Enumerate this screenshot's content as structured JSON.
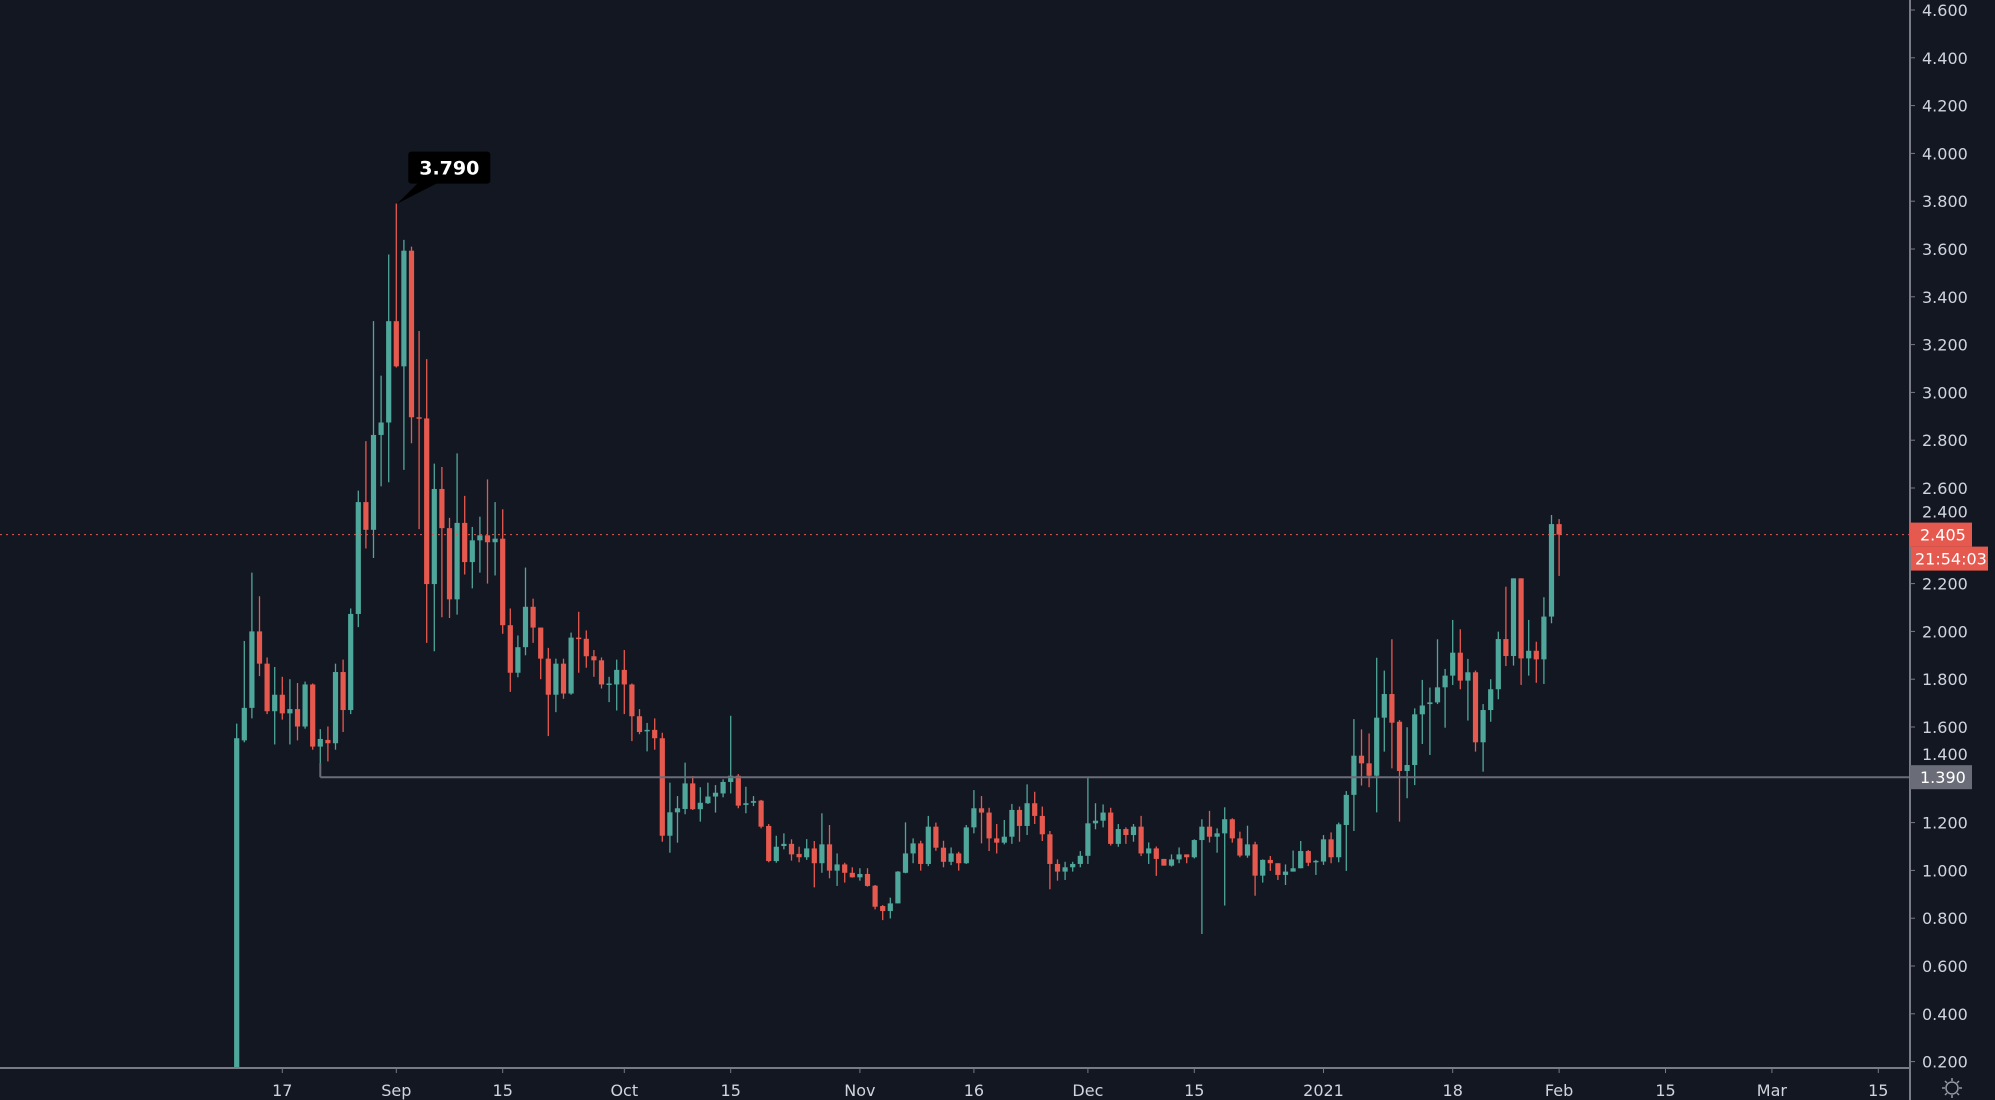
{
  "chart_data": {
    "type": "candlestick",
    "start_date": "2020-08-11",
    "interval": "1D",
    "ylim": [
      0.2,
      4.6
    ],
    "y_ticks": [
      "0.200",
      "0.400",
      "0.600",
      "0.800",
      "1.000",
      "1.200",
      "1.400",
      "1.600",
      "1.800",
      "2.000",
      "2.200",
      "2.400",
      "2.600",
      "2.800",
      "3.000",
      "3.200",
      "3.400",
      "3.600",
      "3.800",
      "4.000",
      "4.200",
      "4.400",
      "4.600"
    ],
    "x_ticks": [
      {
        "label": "17",
        "date": "2020-08-17"
      },
      {
        "label": "Sep",
        "date": "2020-09-01"
      },
      {
        "label": "15",
        "date": "2020-09-15"
      },
      {
        "label": "Oct",
        "date": "2020-10-01"
      },
      {
        "label": "15",
        "date": "2020-10-15"
      },
      {
        "label": "Nov",
        "date": "2020-11-01"
      },
      {
        "label": "16",
        "date": "2020-11-16"
      },
      {
        "label": "Dec",
        "date": "2020-12-01"
      },
      {
        "label": "15",
        "date": "2020-12-15"
      },
      {
        "label": "2021",
        "date": "2021-01-01"
      },
      {
        "label": "18",
        "date": "2021-01-18"
      },
      {
        "label": "Feb",
        "date": "2021-02-01"
      },
      {
        "label": "15",
        "date": "2021-02-15"
      },
      {
        "label": "Mar",
        "date": "2021-03-01"
      },
      {
        "label": "15",
        "date": "2021-03-15"
      }
    ],
    "colors": {
      "background": "#131722",
      "up": "#4fa69b",
      "down": "#e5594f",
      "axis": "#787b86",
      "text": "#d1d4dc",
      "level_line": "#6a6d78"
    },
    "high_annotation": {
      "label": "3.790",
      "value": 3.79,
      "date": "2020-09-01"
    },
    "last_price": {
      "label": "2.405",
      "value": 2.405,
      "countdown": "21:54:03"
    },
    "horizontal_level": {
      "label": "1.390",
      "value": 1.39,
      "start_date": "2020-08-22"
    },
    "settings_icon": "gear-icon",
    "ohlc": [
      [
        0.15,
        1.614,
        0.15,
        1.553
      ],
      [
        1.544,
        1.96,
        1.536,
        1.68
      ],
      [
        1.68,
        2.246,
        1.636,
        2.0
      ],
      [
        2.0,
        2.147,
        1.813,
        1.865
      ],
      [
        1.865,
        1.891,
        1.654,
        1.666
      ],
      [
        1.666,
        1.851,
        1.527,
        1.735
      ],
      [
        1.735,
        1.81,
        1.631,
        1.657
      ],
      [
        1.657,
        1.8,
        1.527,
        1.675
      ],
      [
        1.675,
        1.784,
        1.544,
        1.602
      ],
      [
        1.602,
        1.79,
        1.593,
        1.778
      ],
      [
        1.778,
        1.782,
        1.505,
        1.518
      ],
      [
        1.518,
        1.591,
        1.392,
        1.55
      ],
      [
        1.546,
        1.602,
        1.456,
        1.532
      ],
      [
        1.532,
        1.865,
        1.505,
        1.83
      ],
      [
        1.83,
        1.882,
        1.579,
        1.671
      ],
      [
        1.671,
        2.096,
        1.654,
        2.073
      ],
      [
        2.073,
        2.589,
        2.018,
        2.541
      ],
      [
        2.541,
        2.796,
        2.347,
        2.425
      ],
      [
        2.425,
        3.298,
        2.307,
        2.822
      ],
      [
        2.822,
        3.07,
        2.607,
        2.874
      ],
      [
        2.874,
        3.577,
        2.624,
        3.298
      ],
      [
        3.298,
        3.79,
        3.104,
        3.109
      ],
      [
        3.109,
        3.638,
        2.676,
        3.593
      ],
      [
        3.593,
        3.61,
        2.787,
        2.896
      ],
      [
        2.896,
        3.257,
        2.428,
        2.891
      ],
      [
        2.891,
        3.139,
        1.952,
        2.198
      ],
      [
        2.198,
        2.702,
        1.917,
        2.596
      ],
      [
        2.596,
        2.688,
        2.059,
        2.432
      ],
      [
        2.432,
        2.475,
        2.056,
        2.134
      ],
      [
        2.134,
        2.745,
        2.07,
        2.454
      ],
      [
        2.454,
        2.567,
        2.238,
        2.29
      ],
      [
        2.29,
        2.437,
        2.18,
        2.381
      ],
      [
        2.381,
        2.48,
        2.246,
        2.402
      ],
      [
        2.402,
        2.636,
        2.2,
        2.373
      ],
      [
        2.373,
        2.541,
        2.234,
        2.388
      ],
      [
        2.388,
        2.511,
        1.99,
        2.026
      ],
      [
        2.026,
        2.096,
        1.747,
        1.827
      ],
      [
        1.827,
        1.983,
        1.808,
        1.934
      ],
      [
        1.934,
        2.267,
        1.9,
        2.103
      ],
      [
        2.103,
        2.137,
        1.952,
        2.016
      ],
      [
        2.016,
        2.016,
        1.8,
        1.886
      ],
      [
        1.886,
        1.931,
        1.562,
        1.735
      ],
      [
        1.735,
        1.886,
        1.662,
        1.865
      ],
      [
        1.865,
        1.886,
        1.718,
        1.74
      ],
      [
        1.74,
        1.995,
        1.735,
        1.974
      ],
      [
        1.974,
        2.082,
        1.827,
        1.969
      ],
      [
        1.969,
        2.004,
        1.848,
        1.896
      ],
      [
        1.896,
        1.922,
        1.81,
        1.879
      ],
      [
        1.879,
        1.891,
        1.761,
        1.778
      ],
      [
        1.778,
        1.81,
        1.704,
        1.782
      ],
      [
        1.778,
        1.882,
        1.669,
        1.839
      ],
      [
        1.839,
        1.922,
        1.654,
        1.778
      ],
      [
        1.778,
        1.782,
        1.541,
        1.645
      ],
      [
        1.645,
        1.675,
        1.57,
        1.579
      ],
      [
        1.584,
        1.617,
        1.498,
        1.588
      ],
      [
        1.588,
        1.636,
        1.505,
        1.553
      ],
      [
        1.553,
        1.576,
        1.12,
        1.145
      ],
      [
        1.145,
        1.367,
        1.074,
        1.243
      ],
      [
        1.243,
        1.311,
        1.116,
        1.26
      ],
      [
        1.257,
        1.451,
        1.235,
        1.364
      ],
      [
        1.364,
        1.395,
        1.253,
        1.256
      ],
      [
        1.256,
        1.348,
        1.204,
        1.283
      ],
      [
        1.281,
        1.367,
        1.278,
        1.309
      ],
      [
        1.309,
        1.357,
        1.242,
        1.325
      ],
      [
        1.322,
        1.381,
        1.306,
        1.37
      ],
      [
        1.37,
        1.647,
        1.322,
        1.396
      ],
      [
        1.396,
        1.403,
        1.26,
        1.271
      ],
      [
        1.274,
        1.35,
        1.239,
        1.281
      ],
      [
        1.283,
        1.311,
        1.269,
        1.29
      ],
      [
        1.292,
        1.295,
        1.176,
        1.183
      ],
      [
        1.186,
        1.194,
        1.034,
        1.039
      ],
      [
        1.039,
        1.145,
        1.032,
        1.099
      ],
      [
        1.102,
        1.155,
        1.088,
        1.111
      ],
      [
        1.111,
        1.13,
        1.041,
        1.067
      ],
      [
        1.069,
        1.099,
        1.034,
        1.055
      ],
      [
        1.055,
        1.131,
        1.044,
        1.092
      ],
      [
        1.092,
        1.123,
        0.929,
        1.03
      ],
      [
        1.03,
        1.239,
        0.99,
        1.109
      ],
      [
        1.109,
        1.19,
        0.967,
        0.999
      ],
      [
        0.999,
        1.071,
        0.935,
        1.025
      ],
      [
        1.025,
        1.032,
        0.949,
        0.99
      ],
      [
        0.99,
        1.013,
        0.97,
        0.971
      ],
      [
        0.971,
        1.009,
        0.957,
        0.985
      ],
      [
        0.985,
        1.009,
        0.932,
        0.935
      ],
      [
        0.936,
        0.939,
        0.837,
        0.848
      ],
      [
        0.851,
        0.855,
        0.792,
        0.83
      ],
      [
        0.83,
        0.886,
        0.799,
        0.862
      ],
      [
        0.862,
        0.997,
        0.862,
        0.995
      ],
      [
        0.99,
        1.201,
        0.988,
        1.071
      ],
      [
        1.071,
        1.134,
        1.03,
        1.113
      ],
      [
        1.113,
        1.124,
        0.999,
        1.027
      ],
      [
        1.027,
        1.228,
        1.018,
        1.183
      ],
      [
        1.183,
        1.2,
        1.082,
        1.095
      ],
      [
        1.095,
        1.124,
        1.013,
        1.036
      ],
      [
        1.036,
        1.096,
        1.022,
        1.071
      ],
      [
        1.071,
        1.078,
        0.999,
        1.03
      ],
      [
        1.03,
        1.19,
        1.027,
        1.18
      ],
      [
        1.18,
        1.336,
        1.155,
        1.26
      ],
      [
        1.26,
        1.311,
        1.113,
        1.242
      ],
      [
        1.242,
        1.262,
        1.081,
        1.134
      ],
      [
        1.134,
        1.194,
        1.071,
        1.116
      ],
      [
        1.116,
        1.211,
        1.109,
        1.141
      ],
      [
        1.141,
        1.278,
        1.111,
        1.253
      ],
      [
        1.253,
        1.267,
        1.12,
        1.186
      ],
      [
        1.186,
        1.36,
        1.148,
        1.281
      ],
      [
        1.281,
        1.329,
        1.194,
        1.228
      ],
      [
        1.228,
        1.267,
        1.123,
        1.151
      ],
      [
        1.151,
        1.165,
        0.921,
        1.027
      ],
      [
        1.027,
        1.046,
        0.957,
        0.995
      ],
      [
        0.995,
        1.036,
        0.96,
        1.013
      ],
      [
        1.013,
        1.036,
        0.995,
        1.027
      ],
      [
        1.027,
        1.081,
        1.013,
        1.061
      ],
      [
        1.061,
        1.392,
        1.027,
        1.197
      ],
      [
        1.197,
        1.281,
        1.172,
        1.208
      ],
      [
        1.208,
        1.276,
        1.18,
        1.242
      ],
      [
        1.242,
        1.262,
        1.104,
        1.111
      ],
      [
        1.111,
        1.194,
        1.099,
        1.173
      ],
      [
        1.173,
        1.18,
        1.111,
        1.148
      ],
      [
        1.148,
        1.194,
        1.12,
        1.183
      ],
      [
        1.183,
        1.228,
        1.06,
        1.071
      ],
      [
        1.071,
        1.117,
        1.027,
        1.092
      ],
      [
        1.092,
        1.1,
        0.977,
        1.048
      ],
      [
        1.048,
        1.048,
        1.02,
        1.02
      ],
      [
        1.02,
        1.067,
        1.016,
        1.046
      ],
      [
        1.046,
        1.096,
        1.03,
        1.067
      ],
      [
        1.067,
        1.067,
        1.03,
        1.055
      ],
      [
        1.055,
        1.13,
        1.05,
        1.127
      ],
      [
        1.127,
        1.214,
        0.734,
        1.183
      ],
      [
        1.183,
        1.249,
        1.117,
        1.141
      ],
      [
        1.141,
        1.176,
        1.074,
        1.155
      ],
      [
        1.155,
        1.264,
        0.853,
        1.214
      ],
      [
        1.214,
        1.218,
        1.116,
        1.134
      ],
      [
        1.134,
        1.162,
        1.055,
        1.062
      ],
      [
        1.062,
        1.187,
        1.053,
        1.109
      ],
      [
        1.109,
        1.12,
        0.894,
        0.978
      ],
      [
        0.978,
        1.046,
        0.949,
        1.044
      ],
      [
        1.044,
        1.06,
        0.998,
        1.03
      ],
      [
        1.03,
        1.03,
        0.96,
        0.981
      ],
      [
        0.981,
        1.025,
        0.939,
        0.995
      ],
      [
        0.995,
        1.083,
        0.995,
        1.009
      ],
      [
        1.009,
        1.123,
        1.009,
        1.081
      ],
      [
        1.081,
        1.085,
        1.018,
        1.032
      ],
      [
        1.035,
        1.044,
        0.981,
        1.04
      ],
      [
        1.037,
        1.148,
        1.023,
        1.13
      ],
      [
        1.13,
        1.159,
        1.03,
        1.055
      ],
      [
        1.055,
        1.2,
        1.034,
        1.193
      ],
      [
        1.19,
        1.332,
        0.998,
        1.316
      ],
      [
        1.316,
        1.633,
        1.165,
        1.48
      ],
      [
        1.48,
        1.59,
        1.355,
        1.448
      ],
      [
        1.448,
        1.573,
        1.348,
        1.396
      ],
      [
        1.396,
        1.89,
        1.243,
        1.639
      ],
      [
        1.639,
        1.836,
        1.497,
        1.738
      ],
      [
        1.738,
        1.967,
        1.427,
        1.618
      ],
      [
        1.622,
        1.629,
        1.204,
        1.416
      ],
      [
        1.416,
        1.599,
        1.302,
        1.441
      ],
      [
        1.441,
        1.678,
        1.357,
        1.653
      ],
      [
        1.653,
        1.797,
        1.529,
        1.69
      ],
      [
        1.696,
        1.765,
        1.483,
        1.703
      ],
      [
        1.703,
        1.967,
        1.696,
        1.766
      ],
      [
        1.766,
        1.843,
        1.597,
        1.815
      ],
      [
        1.815,
        2.048,
        1.776,
        1.911
      ],
      [
        1.911,
        2.009,
        1.758,
        1.794
      ],
      [
        1.794,
        1.885,
        1.627,
        1.829
      ],
      [
        1.829,
        1.836,
        1.497,
        1.536
      ],
      [
        1.536,
        1.696,
        1.413,
        1.671
      ],
      [
        1.671,
        1.8,
        1.622,
        1.758
      ],
      [
        1.758,
        1.999,
        1.716,
        1.968
      ],
      [
        1.968,
        2.187,
        1.855,
        1.897
      ],
      [
        1.897,
        2.222,
        1.857,
        2.222
      ],
      [
        2.222,
        2.222,
        1.776,
        1.887
      ],
      [
        1.887,
        2.048,
        1.815,
        1.919
      ],
      [
        1.919,
        1.957,
        1.785,
        1.883
      ],
      [
        1.883,
        2.143,
        1.78,
        2.062
      ],
      [
        2.062,
        2.487,
        2.034,
        2.449
      ],
      [
        2.449,
        2.47,
        2.232,
        2.405
      ]
    ]
  }
}
